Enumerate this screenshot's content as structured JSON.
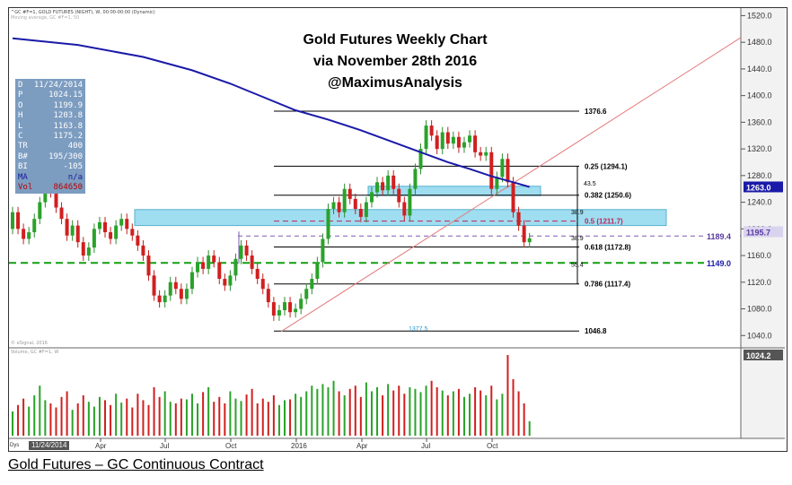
{
  "header": {
    "symbol_line": "^GC #F=1, GOLD FUTURES (NIGHT), W, 00:00-00:00 (Dynamic)",
    "sub_line": "Moving average, GC #F=1, 50",
    "volume_line": "Volume, GC #F=1, W",
    "copyright": "© eSignal, 2016"
  },
  "title": {
    "line1": "Gold Futures Weekly Chart",
    "line2": "via November 28th 2016",
    "line3": "@MaximusAnalysis"
  },
  "caption": "Gold Futures – GC Continuous Contract",
  "info_panel": [
    {
      "k": "D",
      "v": "11/24/2014"
    },
    {
      "k": "P",
      "v": "1024.15"
    },
    {
      "k": "O",
      "v": "1199.9"
    },
    {
      "k": "H",
      "v": "1203.8"
    },
    {
      "k": "L",
      "v": "1163.8"
    },
    {
      "k": "C",
      "v": "1175.2"
    },
    {
      "k": "TR",
      "v": "400"
    },
    {
      "k": "B#",
      "v": "195/300"
    },
    {
      "k": "BI",
      "v": "-105"
    },
    {
      "k": "MA",
      "v": "n/a"
    },
    {
      "k": "Vol",
      "v": "864650"
    }
  ],
  "date_badge": "11/24/2014",
  "dys_label": "Dys",
  "chart_data": {
    "type": "candlestick",
    "timeframe": "weekly",
    "ylim": [
      1024.2,
      1530
    ],
    "y_ticks": [
      1040.0,
      1080.0,
      1120.0,
      1160.0,
      1200.0,
      1240.0,
      1280.0,
      1320.0,
      1360.0,
      1400.0,
      1440.0,
      1480.0,
      1520.0
    ],
    "x_tick_labels": [
      "Apr",
      "Jul",
      "Oct",
      "2016",
      "Apr",
      "Jul",
      "Oct"
    ],
    "candles": [
      [
        1200,
        1225
      ],
      [
        1225,
        1200
      ],
      [
        1200,
        1185
      ],
      [
        1185,
        1195
      ],
      [
        1195,
        1215
      ],
      [
        1215,
        1240
      ],
      [
        1240,
        1270
      ],
      [
        1270,
        1255
      ],
      [
        1255,
        1232
      ],
      [
        1232,
        1215
      ],
      [
        1215,
        1190
      ],
      [
        1190,
        1205
      ],
      [
        1205,
        1180
      ],
      [
        1180,
        1160
      ],
      [
        1160,
        1172
      ],
      [
        1172,
        1200
      ],
      [
        1200,
        1210
      ],
      [
        1210,
        1195
      ],
      [
        1195,
        1185
      ],
      [
        1185,
        1205
      ],
      [
        1205,
        1215
      ],
      [
        1215,
        1200
      ],
      [
        1200,
        1190
      ],
      [
        1190,
        1175
      ],
      [
        1175,
        1160
      ],
      [
        1160,
        1130
      ],
      [
        1130,
        1100
      ],
      [
        1100,
        1090
      ],
      [
        1090,
        1100
      ],
      [
        1100,
        1120
      ],
      [
        1120,
        1110
      ],
      [
        1110,
        1095
      ],
      [
        1095,
        1110
      ],
      [
        1110,
        1135
      ],
      [
        1135,
        1150
      ],
      [
        1150,
        1140
      ],
      [
        1140,
        1160
      ],
      [
        1160,
        1150
      ],
      [
        1150,
        1125
      ],
      [
        1125,
        1115
      ],
      [
        1115,
        1130
      ],
      [
        1130,
        1155
      ],
      [
        1155,
        1175
      ],
      [
        1175,
        1160
      ],
      [
        1160,
        1140
      ],
      [
        1140,
        1125
      ],
      [
        1125,
        1110
      ],
      [
        1110,
        1090
      ],
      [
        1090,
        1070
      ],
      [
        1070,
        1078
      ],
      [
        1078,
        1090
      ],
      [
        1090,
        1075
      ],
      [
        1075,
        1080
      ],
      [
        1080,
        1095
      ],
      [
        1095,
        1110
      ],
      [
        1110,
        1125
      ],
      [
        1125,
        1150
      ],
      [
        1150,
        1185
      ],
      [
        1185,
        1230
      ],
      [
        1230,
        1240
      ],
      [
        1240,
        1225
      ],
      [
        1225,
        1260
      ],
      [
        1260,
        1245
      ],
      [
        1245,
        1230
      ],
      [
        1230,
        1218
      ],
      [
        1218,
        1240
      ],
      [
        1240,
        1255
      ],
      [
        1255,
        1270
      ],
      [
        1270,
        1258
      ],
      [
        1258,
        1280
      ],
      [
        1280,
        1260
      ],
      [
        1260,
        1240
      ],
      [
        1240,
        1220
      ],
      [
        1220,
        1260
      ],
      [
        1260,
        1290
      ],
      [
        1290,
        1320
      ],
      [
        1320,
        1355
      ],
      [
        1355,
        1340
      ],
      [
        1340,
        1320
      ],
      [
        1320,
        1345
      ],
      [
        1345,
        1328
      ],
      [
        1328,
        1338
      ],
      [
        1338,
        1322
      ],
      [
        1322,
        1330
      ],
      [
        1330,
        1340
      ],
      [
        1340,
        1315
      ],
      [
        1315,
        1310
      ],
      [
        1310,
        1315
      ],
      [
        1315,
        1260
      ],
      [
        1260,
        1278
      ],
      [
        1278,
        1305
      ],
      [
        1305,
        1270
      ],
      [
        1270,
        1225
      ],
      [
        1225,
        1205
      ],
      [
        1205,
        1180
      ],
      [
        1180,
        1186
      ]
    ],
    "moving_average": {
      "name": "MA 50",
      "values": [
        [
          0,
          1486
        ],
        [
          12,
          1476
        ],
        [
          24,
          1458
        ],
        [
          33,
          1438
        ],
        [
          40,
          1418
        ],
        [
          46,
          1398
        ],
        [
          52,
          1378
        ],
        [
          58,
          1364
        ],
        [
          64,
          1348
        ],
        [
          70,
          1330
        ],
        [
          76,
          1312
        ],
        [
          80,
          1300
        ],
        [
          84,
          1290
        ],
        [
          88,
          1279
        ],
        [
          92,
          1270
        ],
        [
          95,
          1263
        ]
      ]
    },
    "horizontal_levels": [
      {
        "label": "1376.6",
        "value": 1376.6
      },
      {
        "label": "0.25 (1294.1)",
        "value": 1294.1
      },
      {
        "label": "0.382 (1250.6)",
        "value": 1250.6
      },
      {
        "label": "0.5 (1211.7)",
        "value": 1211.7
      },
      {
        "label": "0.618 (1172.8)",
        "value": 1172.8
      },
      {
        "label": "0.786 (1117.4)",
        "value": 1117.4
      },
      {
        "label": "1046.8",
        "value": 1046.8
      }
    ],
    "annotations": [
      "43.5",
      "38.9",
      "38.9",
      "55.4",
      "1377.5"
    ],
    "price_markers": [
      {
        "label": "1189.4",
        "value": 1189.4
      },
      {
        "label": "1195.7",
        "value": 1195.7
      },
      {
        "label": "1149.0",
        "value": 1149.0
      },
      {
        "label": "1263.0",
        "value": 1263.0
      },
      {
        "label": "1024.2",
        "value": 1024.2
      }
    ],
    "volume": [
      30,
      38,
      46,
      36,
      50,
      62,
      44,
      40,
      35,
      48,
      55,
      32,
      40,
      50,
      42,
      36,
      48,
      44,
      38,
      52,
      41,
      46,
      35,
      52,
      44,
      38,
      60,
      48,
      55,
      42,
      40,
      46,
      45,
      52,
      40,
      54,
      60,
      42,
      48,
      40,
      55,
      46,
      43,
      51,
      58,
      40,
      46,
      42,
      50,
      38,
      44,
      45,
      52,
      48,
      55,
      62,
      58,
      64,
      60,
      68,
      55,
      50,
      58,
      62,
      48,
      66,
      55,
      60,
      50,
      64,
      56,
      62,
      52,
      60,
      58,
      54,
      62,
      68,
      60,
      56,
      50,
      55,
      58,
      48,
      52,
      60,
      56,
      50,
      62,
      45,
      52,
      100,
      70,
      55,
      40,
      18
    ]
  }
}
